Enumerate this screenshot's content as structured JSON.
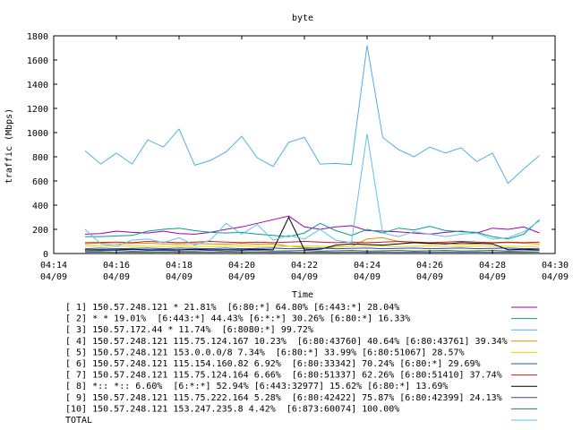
{
  "chart_data": {
    "type": "line",
    "title": "byte",
    "xlabel": "Time",
    "ylabel": "traffic (Mbps)",
    "ylim": [
      0,
      1800
    ],
    "xlim": [
      "04/09 04:14",
      "04/09 04:30"
    ],
    "yticks": [
      0,
      200,
      400,
      600,
      800,
      1000,
      1200,
      1400,
      1600,
      1800
    ],
    "xticks": [
      {
        "time": "04:14",
        "date": "04/09",
        "minute": 14
      },
      {
        "time": "04:16",
        "date": "04/09",
        "minute": 16
      },
      {
        "time": "04:18",
        "date": "04/09",
        "minute": 18
      },
      {
        "time": "04:20",
        "date": "04/09",
        "minute": 20
      },
      {
        "time": "04:22",
        "date": "04/09",
        "minute": 22
      },
      {
        "time": "04:24",
        "date": "04/09",
        "minute": 24
      },
      {
        "time": "04:26",
        "date": "04/09",
        "minute": 26
      },
      {
        "time": "04:28",
        "date": "04/09",
        "minute": 28
      },
      {
        "time": "04:30",
        "date": "04/09",
        "minute": 30
      }
    ],
    "x": [
      15,
      15.5,
      16,
      16.5,
      17,
      17.5,
      18,
      18.5,
      19,
      19.5,
      20,
      20.5,
      21,
      21.5,
      22,
      22.5,
      23,
      23.5,
      24,
      24.5,
      25,
      25.5,
      26,
      26.5,
      27,
      27.5,
      28,
      28.5,
      29,
      29.5
    ],
    "legend": "bottom",
    "series": [
      {
        "name": "[ 1] 150.57.248.121 * 21.81%  [6:80:*] 64.80% [6:443:*] 28.04%",
        "color": "#a000b0",
        "values": [
          160,
          165,
          185,
          175,
          170,
          185,
          165,
          160,
          175,
          200,
          220,
          250,
          280,
          310,
          220,
          200,
          220,
          230,
          190,
          185,
          180,
          170,
          160,
          175,
          185,
          170,
          210,
          200,
          220,
          170
        ]
      },
      {
        "name": "[ 2] * * 19.01%  [6:443:*] 44.43% [6:*:*] 30.26% [6:80:*] 16.33%",
        "color": "#00a090",
        "values": [
          140,
          140,
          145,
          150,
          185,
          200,
          210,
          190,
          175,
          170,
          175,
          160,
          150,
          140,
          170,
          250,
          190,
          150,
          200,
          170,
          210,
          195,
          225,
          190,
          180,
          175,
          140,
          120,
          160,
          280
        ]
      },
      {
        "name": "[ 3] 150.57.172.44 * 11.74%  [6:8080:*] 99.72%",
        "color": "#50b0e0",
        "values": [
          850,
          740,
          830,
          740,
          940,
          880,
          1030,
          730,
          770,
          840,
          970,
          790,
          720,
          920,
          960,
          740,
          745,
          735,
          1720,
          960,
          860,
          800,
          880,
          830,
          875,
          760,
          830,
          580,
          700,
          810
        ]
      },
      {
        "name": "[ 4] 150.57.248.121 115.75.124.167 10.23%  [6:80:43760] 40.64% [6:80:43761] 39.34%",
        "color": "#e09000",
        "values": [
          80,
          85,
          80,
          82,
          85,
          80,
          80,
          82,
          80,
          78,
          82,
          78,
          80,
          60,
          50,
          40,
          55,
          60,
          120,
          130,
          100,
          90,
          80,
          85,
          75,
          80,
          85,
          90,
          85,
          80
        ]
      },
      {
        "name": "[ 5] 150.57.248.121 153.0.0.0/8 7.34%  [6:80:*] 33.99% [6:80:51067] 28.57%",
        "color": "#f0d000",
        "values": [
          60,
          65,
          60,
          62,
          60,
          58,
          62,
          60,
          58,
          60,
          62,
          60,
          58,
          60,
          62,
          60,
          58,
          60,
          62,
          60,
          58,
          60,
          62,
          60,
          58,
          60,
          62,
          60,
          58,
          60
        ]
      },
      {
        "name": "[ 6] 150.57.248.121 115.154.160.82 6.92%  [6:80:33342] 70.24% [6:80:*] 29.69%",
        "color": "#1060b0",
        "values": [
          40,
          45,
          40,
          42,
          45,
          40,
          45,
          42,
          40,
          45,
          40,
          42,
          45,
          40,
          42,
          45,
          40,
          42,
          45,
          40,
          42,
          45,
          40,
          42,
          45,
          40,
          42,
          45,
          40,
          42
        ]
      },
      {
        "name": "[ 7] 150.57.248.121 115.75.124.164 6.66%  [6:80:51337] 62.26% [6:80:51410] 37.74%",
        "color": "#c02020",
        "values": [
          90,
          92,
          95,
          90,
          100,
          95,
          90,
          95,
          100,
          95,
          90,
          95,
          90,
          95,
          100,
          95,
          90,
          95,
          90,
          95,
          100,
          95,
          90,
          95,
          100,
          95,
          90,
          95,
          90,
          95
        ]
      },
      {
        "name": "[ 8] *:: *:: 6.60%  [6:*:*] 52.94% [6:443:32977] 15.62% [6:80:*] 13.69%",
        "color": "#000000",
        "values": [
          30,
          32,
          30,
          35,
          30,
          32,
          30,
          35,
          30,
          32,
          30,
          35,
          30,
          300,
          30,
          35,
          70,
          80,
          75,
          70,
          80,
          90,
          85,
          80,
          90,
          85,
          80,
          30,
          35,
          30
        ]
      },
      {
        "name": "[ 9] 150.57.248.121 115.75.222.164 5.28%  [6:80:42422] 75.87% [6:80:42399] 24.13%",
        "color": "#6030a0",
        "values": [
          20,
          22,
          25,
          20,
          22,
          25,
          20,
          22,
          25,
          20,
          22,
          25,
          20,
          22,
          25,
          20,
          22,
          25,
          20,
          22,
          25,
          20,
          22,
          25,
          20,
          22,
          25,
          20,
          22,
          25
        ]
      },
      {
        "name": "[10] 150.57.248.121 153.247.235.8 4.42%  [6:873:60074] 100.00%",
        "color": "#208060",
        "values": [
          10,
          12,
          10,
          12,
          10,
          12,
          10,
          12,
          10,
          12,
          10,
          12,
          10,
          12,
          10,
          12,
          10,
          12,
          10,
          12,
          10,
          12,
          10,
          12,
          10,
          12,
          10,
          12,
          10,
          12
        ]
      },
      {
        "name": "TOTAL",
        "color": "#60c0e8",
        "values": [
          200,
          80,
          60,
          110,
          120,
          90,
          130,
          70,
          110,
          250,
          160,
          240,
          110,
          150,
          120,
          200,
          110,
          90,
          990,
          170,
          140,
          180,
          160,
          140,
          160,
          170,
          120,
          130,
          180,
          270
        ]
      }
    ]
  }
}
